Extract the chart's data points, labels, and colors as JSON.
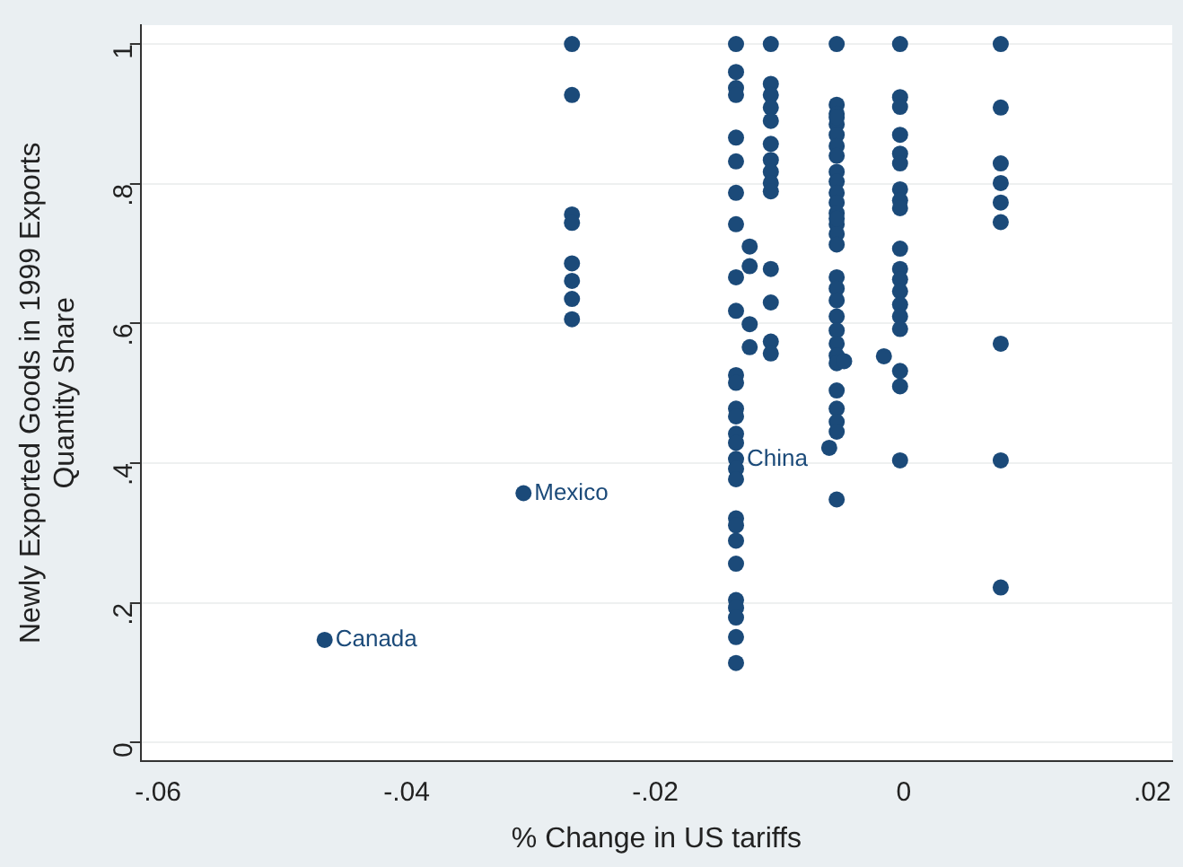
{
  "chart_data": {
    "type": "scatter",
    "xlabel": "% Change in US tariffs",
    "ylabel": "Newly Exported Goods in 1999 Exports\nQuantity Share",
    "color": "#1b4a79",
    "marker": "circle",
    "grid": "y",
    "legend": false,
    "xlim": [
      -0.0614,
      0.0216
    ],
    "ylim": [
      -0.026,
      1.027
    ],
    "xticks": [
      {
        "value": -0.06,
        "label": "-.06"
      },
      {
        "value": -0.04,
        "label": "-.04"
      },
      {
        "value": -0.02,
        "label": "-.02"
      },
      {
        "value": 0,
        "label": "0"
      },
      {
        "value": 0.02,
        "label": ".02"
      }
    ],
    "yticks": [
      {
        "value": 0,
        "label": "0"
      },
      {
        "value": 0.2,
        "label": ".2"
      },
      {
        "value": 0.4,
        "label": ".4"
      },
      {
        "value": 0.6,
        "label": ".6"
      },
      {
        "value": 0.8,
        "label": ".8"
      },
      {
        "value": 1,
        "label": "1"
      }
    ],
    "x": [
      -0.0466,
      -0.0306,
      -0.0267,
      -0.0267,
      -0.0267,
      -0.0267,
      -0.0267,
      -0.0267,
      -0.0267,
      -0.0267,
      -0.0135,
      -0.0135,
      -0.0135,
      -0.0135,
      -0.0135,
      -0.0135,
      -0.0135,
      -0.0135,
      -0.0135,
      -0.0135,
      -0.0135,
      -0.0135,
      -0.0135,
      -0.0135,
      -0.0135,
      -0.0135,
      -0.0135,
      -0.0135,
      -0.0135,
      -0.0135,
      -0.0135,
      -0.0135,
      -0.0135,
      -0.0135,
      -0.0135,
      -0.0135,
      -0.0135,
      -0.0135,
      -0.0124,
      -0.0124,
      -0.0124,
      -0.0124,
      -0.0107,
      -0.0107,
      -0.0107,
      -0.0107,
      -0.0107,
      -0.0107,
      -0.0107,
      -0.0107,
      -0.0107,
      -0.0107,
      -0.0107,
      -0.0107,
      -0.0107,
      -0.0107,
      -0.006,
      -0.0054,
      -0.0054,
      -0.0054,
      -0.0054,
      -0.0054,
      -0.0054,
      -0.0054,
      -0.0054,
      -0.0054,
      -0.0054,
      -0.0054,
      -0.0054,
      -0.0054,
      -0.0054,
      -0.0054,
      -0.0054,
      -0.0054,
      -0.0054,
      -0.0054,
      -0.0054,
      -0.0054,
      -0.0054,
      -0.0054,
      -0.0054,
      -0.0054,
      -0.0054,
      -0.0054,
      -0.0054,
      -0.0054,
      -0.0054,
      -0.0048,
      -0.0016,
      -0.0003,
      -0.0003,
      -0.0003,
      -0.0003,
      -0.0003,
      -0.0003,
      -0.0003,
      -0.0003,
      -0.0003,
      -0.0003,
      -0.0003,
      -0.0003,
      -0.0003,
      -0.0003,
      -0.0003,
      -0.0003,
      -0.0003,
      -0.0003,
      -0.0003,
      0.0078,
      0.0078,
      0.0078,
      0.0078,
      0.0078,
      0.0078,
      0.0078,
      0.0078,
      0.0078
    ],
    "values": [
      0.147,
      0.357,
      1.0,
      0.927,
      0.756,
      0.744,
      0.686,
      0.661,
      0.635,
      0.606,
      1.0,
      0.96,
      0.937,
      0.927,
      0.866,
      0.832,
      0.787,
      0.742,
      0.666,
      0.618,
      0.526,
      0.515,
      0.478,
      0.467,
      0.442,
      0.429,
      0.406,
      0.392,
      0.377,
      0.321,
      0.311,
      0.289,
      0.256,
      0.204,
      0.193,
      0.179,
      0.151,
      0.114,
      0.71,
      0.682,
      0.599,
      0.566,
      1.0,
      0.943,
      0.927,
      0.909,
      0.89,
      0.857,
      0.834,
      0.817,
      0.801,
      0.789,
      0.678,
      0.63,
      0.574,
      0.557,
      0.422,
      1.0,
      0.913,
      0.9,
      0.885,
      0.87,
      0.854,
      0.84,
      0.817,
      0.803,
      0.787,
      0.773,
      0.758,
      0.742,
      0.728,
      0.713,
      0.666,
      0.65,
      0.633,
      0.61,
      0.59,
      0.571,
      0.554,
      0.543,
      0.504,
      0.478,
      0.459,
      0.445,
      0.348,
      0.895,
      0.75,
      0.546,
      0.553,
      1.0,
      0.924,
      0.91,
      0.87,
      0.843,
      0.829,
      0.792,
      0.776,
      0.765,
      0.707,
      0.678,
      0.663,
      0.646,
      0.627,
      0.61,
      0.592,
      0.532,
      0.51,
      0.404,
      1.0,
      0.909,
      0.829,
      0.801,
      0.773,
      0.745,
      0.571,
      0.404,
      0.222
    ],
    "annotations": [
      {
        "text": "Canada",
        "x": -0.0466,
        "y": 0.147
      },
      {
        "text": "Mexico",
        "x": -0.0306,
        "y": 0.357
      },
      {
        "text": "China",
        "x": -0.0135,
        "y": 0.406
      }
    ]
  }
}
